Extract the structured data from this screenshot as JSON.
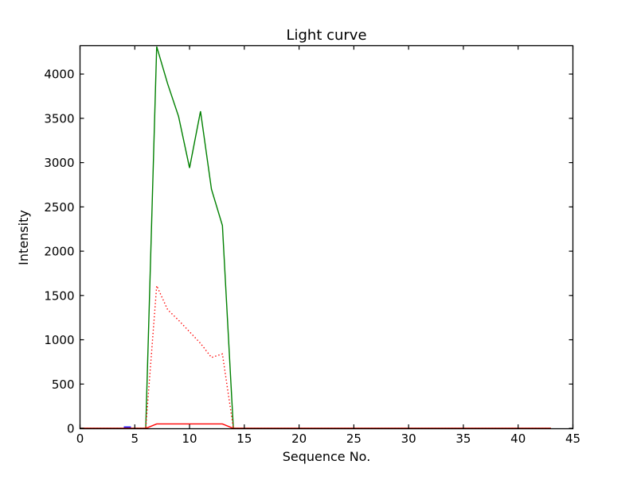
{
  "figure": {
    "title": "Light curve",
    "xlabel": "Sequence No.",
    "ylabel": "Intensity"
  },
  "chart_data": {
    "type": "line",
    "title": "Light curve",
    "xlabel": "Sequence No.",
    "ylabel": "Intensity",
    "xlim": [
      0,
      45
    ],
    "ylim": [
      0,
      4320
    ],
    "xticks": [
      0,
      5,
      10,
      15,
      20,
      25,
      30,
      35,
      40,
      45
    ],
    "yticks": [
      0,
      500,
      1000,
      1500,
      2000,
      2500,
      3000,
      3500,
      4000
    ],
    "grid": false,
    "legend": null,
    "background": "#ffffff",
    "frame_color": "#000000",
    "series": [
      {
        "name": "green-solid",
        "color": "#008000",
        "style": "solid",
        "x": [
          0,
          1,
          2,
          3,
          4,
          5,
          6,
          7,
          8,
          9,
          10,
          11,
          12,
          13,
          14,
          15,
          16,
          17,
          18,
          19,
          20,
          21,
          22,
          23,
          24,
          25,
          26,
          27,
          28,
          29,
          30,
          31,
          32,
          33,
          34,
          35,
          36,
          37,
          38,
          39,
          40,
          41,
          42,
          43
        ],
        "y": [
          0,
          0,
          0,
          0,
          0,
          0,
          0,
          4310,
          3890,
          3520,
          2940,
          3580,
          2700,
          2290,
          0,
          0,
          0,
          0,
          0,
          0,
          0,
          0,
          0,
          0,
          0,
          0,
          0,
          0,
          0,
          0,
          0,
          0,
          0,
          0,
          0,
          0,
          0,
          0,
          0,
          0,
          0,
          0,
          0,
          0
        ]
      },
      {
        "name": "red-dotted",
        "color": "#ff0000",
        "style": "dotted",
        "x": [
          0,
          1,
          2,
          3,
          4,
          5,
          6,
          7,
          8,
          9,
          10,
          11,
          12,
          13,
          14,
          15,
          16,
          17,
          18,
          19,
          20,
          21,
          22,
          23,
          24,
          25,
          26,
          27,
          28,
          29,
          30,
          31,
          32,
          33,
          34,
          35,
          36,
          37,
          38,
          39,
          40,
          41,
          42,
          43
        ],
        "y": [
          0,
          0,
          0,
          0,
          0,
          0,
          0,
          1610,
          1340,
          1220,
          1090,
          960,
          800,
          840,
          0,
          0,
          0,
          0,
          0,
          0,
          0,
          0,
          0,
          0,
          0,
          0,
          0,
          0,
          0,
          0,
          0,
          0,
          0,
          0,
          0,
          0,
          0,
          0,
          0,
          0,
          0,
          0,
          0,
          0
        ]
      },
      {
        "name": "red-solid",
        "color": "#ff0000",
        "style": "solid",
        "x": [
          0,
          1,
          2,
          3,
          4,
          5,
          6,
          7,
          8,
          9,
          10,
          11,
          12,
          13,
          14,
          15,
          16,
          17,
          18,
          19,
          20,
          21,
          22,
          23,
          24,
          25,
          26,
          27,
          28,
          29,
          30,
          31,
          32,
          33,
          34,
          35,
          36,
          37,
          38,
          39,
          40,
          41,
          42,
          43
        ],
        "y": [
          0,
          0,
          0,
          0,
          0,
          0,
          0,
          50,
          50,
          50,
          50,
          50,
          50,
          50,
          0,
          0,
          0,
          0,
          0,
          0,
          0,
          0,
          0,
          0,
          0,
          0,
          0,
          0,
          0,
          0,
          0,
          0,
          0,
          0,
          0,
          0,
          0,
          0,
          0,
          0,
          0,
          0,
          0,
          0
        ]
      },
      {
        "name": "blue-solid",
        "color": "#0000ff",
        "style": "solid",
        "x": [
          4,
          4.65
        ],
        "y": [
          15,
          15
        ]
      }
    ]
  }
}
